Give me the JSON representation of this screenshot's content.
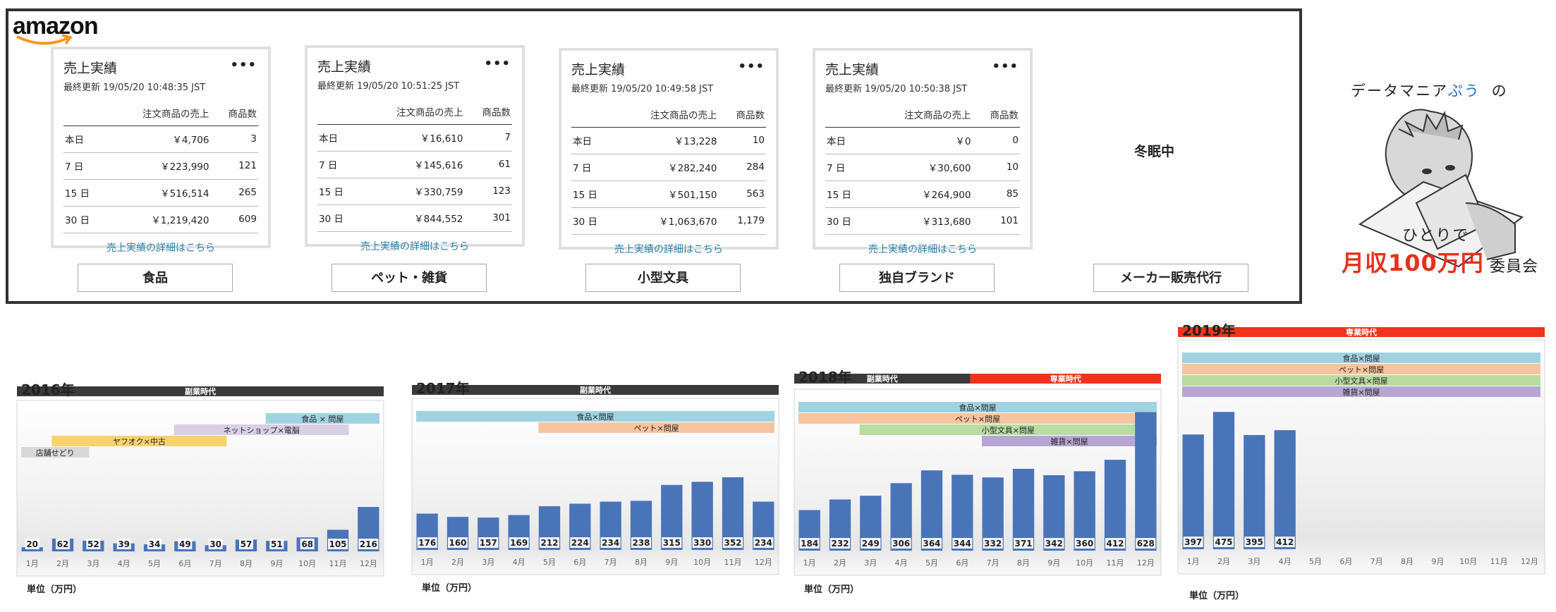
{
  "logo": {
    "text": "amazon"
  },
  "cards": [
    {
      "title": "売上実績",
      "updated": "最終更新 19/05/20 10:48:35 JST",
      "col_sales": "注文商品の売上",
      "col_count": "商品数",
      "rows": [
        {
          "label": "本日",
          "sales": "￥4,706",
          "count": "3"
        },
        {
          "label": "7 日",
          "sales": "￥223,990",
          "count": "121"
        },
        {
          "label": "15 日",
          "sales": "￥516,514",
          "count": "265"
        },
        {
          "label": "30 日",
          "sales": "￥1,219,420",
          "count": "609"
        }
      ],
      "link": "売上実績の詳細はこちら",
      "category": "食品"
    },
    {
      "title": "売上実績",
      "updated": "最終更新 19/05/20 10:51:25 JST",
      "col_sales": "注文商品の売上",
      "col_count": "商品数",
      "rows": [
        {
          "label": "本日",
          "sales": "￥16,610",
          "count": "7"
        },
        {
          "label": "7 日",
          "sales": "￥145,616",
          "count": "61"
        },
        {
          "label": "15 日",
          "sales": "￥330,759",
          "count": "123"
        },
        {
          "label": "30 日",
          "sales": "￥844,552",
          "count": "301"
        }
      ],
      "link": "売上実績の詳細はこちら",
      "category": "ペット・雑貨"
    },
    {
      "title": "売上実績",
      "updated": "最終更新 19/05/20 10:49:58 JST",
      "col_sales": "注文商品の売上",
      "col_count": "商品数",
      "rows": [
        {
          "label": "本日",
          "sales": "￥13,228",
          "count": "10"
        },
        {
          "label": "7 日",
          "sales": "￥282,240",
          "count": "284"
        },
        {
          "label": "15 日",
          "sales": "￥501,150",
          "count": "563"
        },
        {
          "label": "30 日",
          "sales": "￥1,063,670",
          "count": "1,179"
        }
      ],
      "link": "売上実績の詳細はこちら",
      "category": "小型文具"
    },
    {
      "title": "売上実績",
      "updated": "最終更新 19/05/20 10:50:38 JST",
      "col_sales": "注文商品の売上",
      "col_count": "商品数",
      "rows": [
        {
          "label": "本日",
          "sales": "￥0",
          "count": "0"
        },
        {
          "label": "7 日",
          "sales": "￥30,600",
          "count": "10"
        },
        {
          "label": "15 日",
          "sales": "￥264,900",
          "count": "85"
        },
        {
          "label": "30 日",
          "sales": "￥313,680",
          "count": "101"
        }
      ],
      "link": "売上実績の詳細はこちら",
      "category": "独自ブランド"
    }
  ],
  "fifth_category": {
    "status": "冬眠中",
    "category": "メーカー販売代行"
  },
  "brand": {
    "title_a": "データマニア",
    "title_b": "ぷう",
    "title_c": "の",
    "sub": "ひとりで",
    "big": "月収100万円",
    "big_suffix": "委員会"
  },
  "colors": {
    "bar": "#4a74b8",
    "dark_band": "#3a3a3a",
    "red_band": "#f0341c",
    "food": "#9fd3e2",
    "pet": "#f7c4a0",
    "stationery": "#b9dca0",
    "misc": "#b7a6d3",
    "yahoo": "#f7d36e",
    "netshop": "#d9d0e6",
    "store": "#d8d8d8"
  },
  "chart_data": [
    {
      "type": "bar",
      "title": "2016年",
      "era": [
        {
          "label": "副業時代",
          "color": "dark"
        }
      ],
      "categories": [
        "1月",
        "2月",
        "3月",
        "4月",
        "5月",
        "6月",
        "7月",
        "8月",
        "9月",
        "10月",
        "11月",
        "12月"
      ],
      "values": [
        20,
        62,
        52,
        39,
        34,
        49,
        30,
        57,
        51,
        68,
        105,
        216
      ],
      "ylim": [
        0,
        700
      ],
      "unit": "単位（万円）",
      "annotations": [
        {
          "label": "食品 × 問屋",
          "color": "food",
          "from": 9,
          "to": 12
        },
        {
          "label": "ネットショップ×電脳",
          "color": "netshop",
          "from": 6,
          "to": 11
        },
        {
          "label": "ヤフオク×中古",
          "color": "yahoo",
          "from": 2,
          "to": 7
        },
        {
          "label": "店舗せどり",
          "color": "store",
          "from": 1,
          "to": 2.5
        }
      ]
    },
    {
      "type": "bar",
      "title": "2017年",
      "era": [
        {
          "label": "副業時代",
          "color": "dark"
        }
      ],
      "categories": [
        "1月",
        "2月",
        "3月",
        "4月",
        "5月",
        "6月",
        "7月",
        "8月",
        "9月",
        "10月",
        "11月",
        "12月"
      ],
      "values": [
        176,
        160,
        157,
        169,
        212,
        224,
        234,
        238,
        315,
        330,
        352,
        234
      ],
      "ylim": [
        0,
        700
      ],
      "unit": "単位（万円）",
      "annotations": [
        {
          "label": "食品×問屋",
          "color": "food",
          "from": 1,
          "to": 12
        },
        {
          "label": "ペット×問屋",
          "color": "pet",
          "from": 5,
          "to": 12
        }
      ]
    },
    {
      "type": "bar",
      "title": "2018年",
      "era": [
        {
          "label": "副業時代",
          "color": "dark"
        },
        {
          "label": "専業時代",
          "color": "red"
        }
      ],
      "categories": [
        "1月",
        "2月",
        "3月",
        "4月",
        "5月",
        "6月",
        "7月",
        "8月",
        "9月",
        "10月",
        "11月",
        "12月"
      ],
      "values": [
        184,
        232,
        249,
        306,
        364,
        344,
        332,
        371,
        342,
        360,
        412,
        628
      ],
      "ylim": [
        0,
        700
      ],
      "unit": "単位（万円）",
      "annotations": [
        {
          "label": "食品×問屋",
          "color": "food",
          "from": 1,
          "to": 12
        },
        {
          "label": "ペット×問屋",
          "color": "pet",
          "from": 1,
          "to": 12
        },
        {
          "label": "小型文具×問屋",
          "color": "stationery",
          "from": 3,
          "to": 12
        },
        {
          "label": "雑貨×問屋",
          "color": "misc",
          "from": 7,
          "to": 12
        }
      ]
    },
    {
      "type": "bar",
      "title": "2019年",
      "era": [
        {
          "label": "専業時代",
          "color": "red"
        }
      ],
      "categories": [
        "1月",
        "2月",
        "3月",
        "4月",
        "5月",
        "6月",
        "7月",
        "8月",
        "9月",
        "10月",
        "11月",
        "12月"
      ],
      "values": [
        397,
        475,
        395,
        412,
        null,
        null,
        null,
        null,
        null,
        null,
        null,
        null
      ],
      "ylim": [
        0,
        700
      ],
      "unit": "単位（万円）",
      "annotations": [
        {
          "label": "食品×問屋",
          "color": "food",
          "from": 1,
          "to": 12
        },
        {
          "label": "ペット×問屋",
          "color": "pet",
          "from": 1,
          "to": 12
        },
        {
          "label": "小型文具×問屋",
          "color": "stationery",
          "from": 1,
          "to": 12
        },
        {
          "label": "雑貨×問屋",
          "color": "misc",
          "from": 1,
          "to": 12
        }
      ]
    }
  ]
}
